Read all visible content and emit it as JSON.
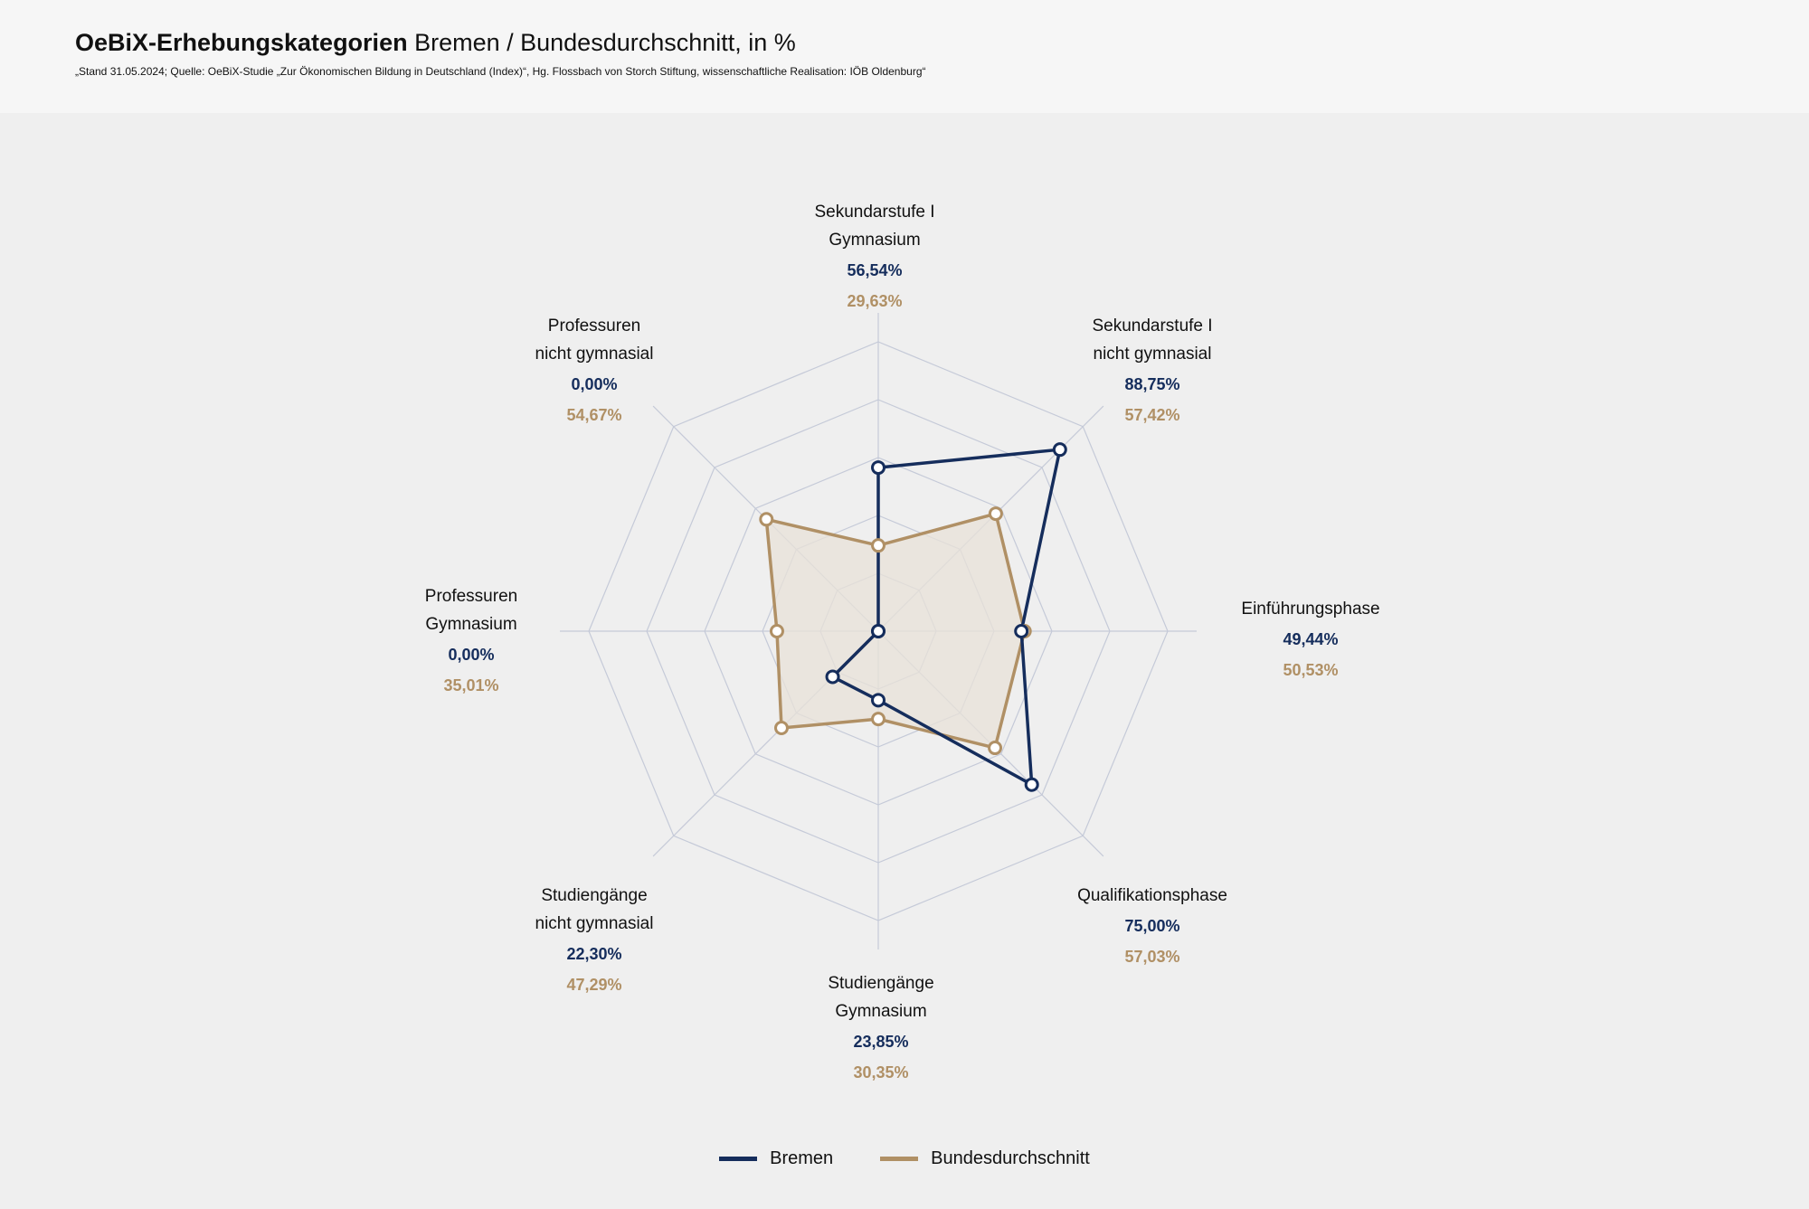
{
  "header": {
    "title_bold": "OeBiX-Erhebungskategorien",
    "title_rest": " Bremen / Bundesdurchschnitt, in %",
    "source": "„Stand 31.05.2024; Quelle: OeBiX-Studie „Zur Ökonomischen Bildung in Deutschland (Index)“, Hg. Flossbach von Storch Stiftung, wissenschaftliche Realisation: IÖB Oldenburg“"
  },
  "colors": {
    "bremen": "#152d5c",
    "bund": "#b09065",
    "grid": "#c5cad8",
    "fill": "#e8e2d8"
  },
  "chart_data": {
    "type": "radar",
    "ylim": [
      0,
      100
    ],
    "grid_rings": [
      20,
      40,
      60,
      80,
      100
    ],
    "categories": [
      {
        "label": [
          "Sekundarstufe I",
          "Gymnasium"
        ],
        "bremen_text": "56,54%",
        "bund_text": "29,63%"
      },
      {
        "label": [
          "Sekundarstufe I",
          "nicht gymnasial"
        ],
        "bremen_text": "88,75%",
        "bund_text": "57,42%"
      },
      {
        "label": [
          "Einführungsphase"
        ],
        "bremen_text": "49,44%",
        "bund_text": "50,53%"
      },
      {
        "label": [
          "Qualifikationsphase"
        ],
        "bremen_text": "75,00%",
        "bund_text": "57,03%"
      },
      {
        "label": [
          "Studiengänge",
          "Gymnasium"
        ],
        "bremen_text": "23,85%",
        "bund_text": "30,35%"
      },
      {
        "label": [
          "Studiengänge",
          "nicht gymnasial"
        ],
        "bremen_text": "22,30%",
        "bund_text": "47,29%"
      },
      {
        "label": [
          "Professuren",
          "Gymnasium"
        ],
        "bremen_text": "0,00%",
        "bund_text": "35,01%"
      },
      {
        "label": [
          "Professuren",
          "nicht gymnasial"
        ],
        "bremen_text": "0,00%",
        "bund_text": "54,67%"
      }
    ],
    "series": [
      {
        "name": "Bremen",
        "values": [
          56.54,
          88.75,
          49.44,
          75.0,
          23.85,
          22.3,
          0.0,
          0.0
        ]
      },
      {
        "name": "Bundesdurchschnitt",
        "values": [
          29.63,
          57.42,
          50.53,
          57.03,
          30.35,
          47.29,
          35.01,
          54.67
        ]
      }
    ],
    "legend_position": "bottom-center"
  }
}
